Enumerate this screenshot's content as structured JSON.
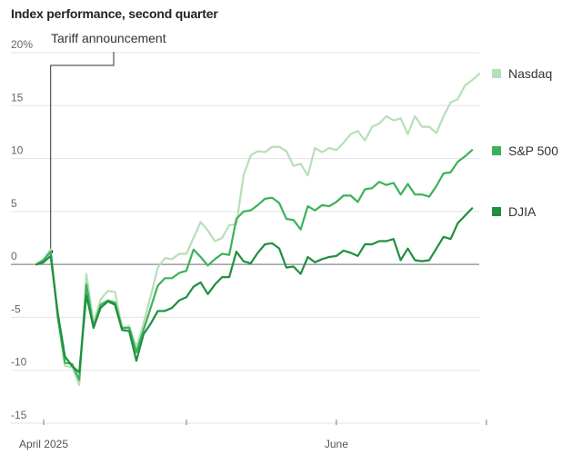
{
  "chart_data": {
    "type": "line",
    "title": "Index performance, second quarter",
    "y_ticks": [
      {
        "value": 20,
        "label": "20%"
      },
      {
        "value": 15,
        "label": "15"
      },
      {
        "value": 10,
        "label": "10"
      },
      {
        "value": 5,
        "label": "5"
      },
      {
        "value": 0,
        "label": "0"
      },
      {
        "value": -5,
        "label": "-5"
      },
      {
        "value": -10,
        "label": "-10"
      },
      {
        "value": -15,
        "label": "-15"
      }
    ],
    "ylim": [
      -15,
      20
    ],
    "x_labels": [
      {
        "index": 0,
        "label": "April 2025"
      },
      {
        "index": 42,
        "label": "June"
      }
    ],
    "x_minor_ticks": [
      21,
      63
    ],
    "grid": true,
    "legend_position": "right",
    "annotation": {
      "text": "Tariff announcement",
      "index": 2
    },
    "series": [
      {
        "name": "Nasdaq",
        "color": "#b7dfb8",
        "values": [
          0,
          0.5,
          1.4,
          -5,
          -9.6,
          -9.7,
          -11.4,
          -0.9,
          -5.5,
          -3.3,
          -2.5,
          -2.6,
          -6,
          -5.8,
          -7.8,
          -5.6,
          -3,
          -0.3,
          0.6,
          0.5,
          1,
          1,
          2.5,
          4,
          3.2,
          2.2,
          2.5,
          3.7,
          3.8,
          8.4,
          10.3,
          10.7,
          10.6,
          11.1,
          11.1,
          10.7,
          9.3,
          9.5,
          8.4,
          11,
          10.6,
          11,
          10.8,
          11.5,
          12.3,
          12.6,
          11.7,
          13,
          13.3,
          14,
          13.6,
          13.8,
          12.3,
          14,
          13,
          13,
          12.4,
          14,
          15.3,
          15.6,
          16.9,
          17.4,
          18
        ]
      },
      {
        "name": "S&P 500",
        "color": "#3bb25a",
        "values": [
          0,
          0.4,
          1.2,
          -5,
          -9.3,
          -9.4,
          -10.9,
          -1.9,
          -5.9,
          -3.8,
          -3.4,
          -3.6,
          -6,
          -6,
          -8.3,
          -6.2,
          -4.1,
          -2,
          -1.3,
          -1.3,
          -0.8,
          -0.6,
          1.4,
          0.7,
          -0.1,
          0.5,
          1,
          0.9,
          4.3,
          5,
          5.1,
          5.6,
          6.2,
          6.3,
          5.8,
          4.3,
          4.2,
          3.3,
          5.5,
          5.1,
          5.6,
          5.5,
          5.9,
          6.5,
          6.5,
          5.9,
          7.1,
          7.2,
          7.8,
          7.5,
          7.7,
          6.6,
          7.6,
          6.6,
          6.6,
          6.4,
          7.4,
          8.6,
          8.7,
          9.7,
          10.2,
          10.8
        ]
      },
      {
        "name": "DJIA",
        "color": "#1f8f40",
        "values": [
          0,
          0.2,
          0.8,
          -4.6,
          -8.7,
          -9.6,
          -10.2,
          -2.9,
          -6,
          -4.1,
          -3.5,
          -3.8,
          -6.2,
          -6.3,
          -9.1,
          -6.6,
          -5.6,
          -4.4,
          -4.4,
          -4.1,
          -3.4,
          -3.1,
          -2.1,
          -1.7,
          -2.8,
          -1.9,
          -1.2,
          -1.2,
          1.2,
          0.3,
          0.1,
          1.1,
          1.9,
          2,
          1.5,
          -0.3,
          -0.2,
          -0.9,
          0.7,
          0.2,
          0.5,
          0.7,
          0.8,
          1.3,
          1.1,
          0.8,
          1.9,
          1.9,
          2.2,
          2.2,
          2.4,
          0.4,
          1.5,
          0.4,
          0.3,
          0.4,
          1.5,
          2.6,
          2.4,
          3.9,
          4.6,
          5.3
        ]
      }
    ]
  }
}
